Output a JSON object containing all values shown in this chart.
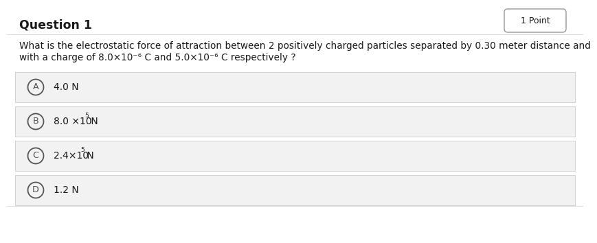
{
  "title": "Question 1",
  "points_label": "1 Point",
  "question_line1": "What is the electrostatic force of attraction between 2 positively charged particles separated by 0.30 meter distance and",
  "question_line2": "with a charge of 8.0×10⁻⁶ C and 5.0×10⁻⁶ C respectively ?",
  "option_A_text": "4.0 N",
  "option_B_main": "8.0 ×10",
  "option_B_sup": "5",
  "option_B_tail": " N",
  "option_C_main": "2.4×10",
  "option_C_sup": "5",
  "option_C_tail": " N",
  "option_D_text": "1.2 N",
  "bg_color": "#ffffff",
  "option_bg_color": "#f2f2f2",
  "title_fontsize": 12.5,
  "question_fontsize": 9.8,
  "option_fontsize": 10.0,
  "text_color": "#1a1a1a",
  "circle_color": "#555555",
  "border_color": "#cccccc",
  "badge_border_color": "#999999"
}
